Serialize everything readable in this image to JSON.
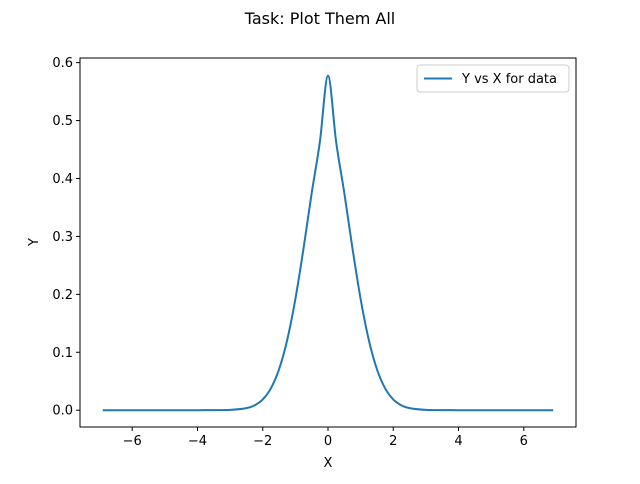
{
  "chart_data": {
    "type": "line",
    "title": "Task: Plot Them All",
    "xlabel": "X",
    "ylabel": "Y",
    "xlim": [
      -7.6,
      7.6
    ],
    "ylim": [
      -0.029,
      0.608
    ],
    "xticks": [
      -6,
      -4,
      -2,
      0,
      2,
      4,
      6
    ],
    "yticks": [
      0.0,
      0.1,
      0.2,
      0.3,
      0.4,
      0.5,
      0.6
    ],
    "xtick_labels": [
      "−6",
      "−4",
      "−2",
      "0",
      "2",
      "4",
      "6"
    ],
    "ytick_labels": [
      "0.0",
      "0.1",
      "0.2",
      "0.3",
      "0.4",
      "0.5",
      "0.6"
    ],
    "legend_position": "top-right",
    "grid": false,
    "series": [
      {
        "name": "Y vs X for data",
        "color": "#1f77b4",
        "x": [
          -6.9,
          -5,
          -4,
          -3,
          -2.5,
          -2.25,
          -2,
          -1.75,
          -1.5,
          -1.25,
          -1,
          -0.75,
          -0.5,
          -0.25,
          0,
          0.25,
          0.5,
          0.75,
          1,
          1.25,
          1.5,
          1.75,
          2,
          2.25,
          2.5,
          3,
          4,
          5,
          6.9
        ],
        "y": [
          0,
          0,
          0,
          0.0006,
          0.0035,
          0.0084,
          0.0186,
          0.0378,
          0.0706,
          0.1214,
          0.1919,
          0.2794,
          0.3747,
          0.4629,
          0.5774,
          0.4629,
          0.3747,
          0.2794,
          0.1919,
          0.1214,
          0.0706,
          0.0378,
          0.0186,
          0.0084,
          0.0035,
          0.0006,
          0,
          0,
          0
        ]
      }
    ]
  }
}
